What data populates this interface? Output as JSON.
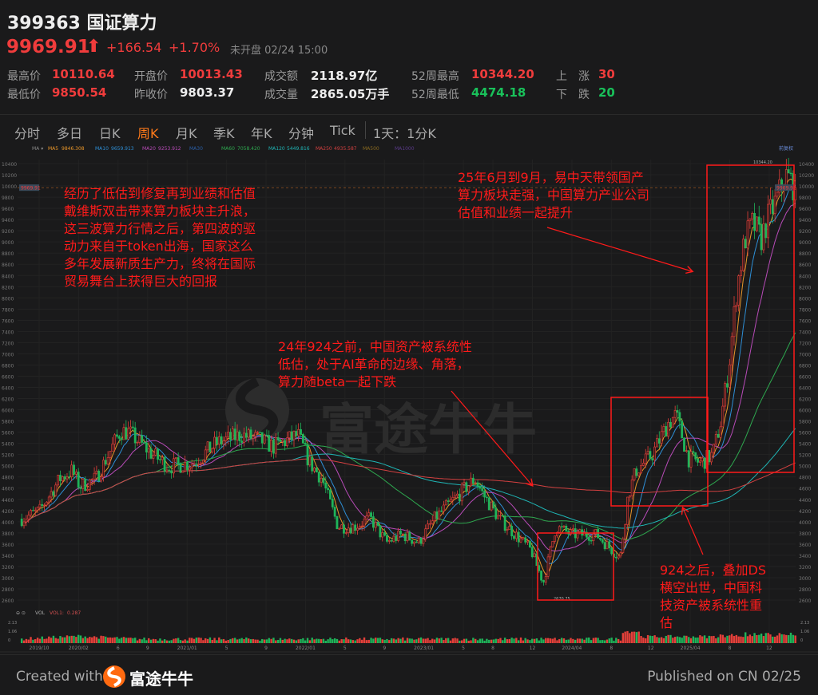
{
  "header": {
    "code_name": "399363 国证算力",
    "price": "9969.91",
    "arrow": "⬆",
    "change": "+166.54",
    "change_pct": "+1.70%",
    "status": "未开盘",
    "datetime": "02/24 15:00"
  },
  "stats": [
    {
      "label": "最高价",
      "value": "10110.64",
      "color": "red"
    },
    {
      "label": "最低价",
      "value": "9850.54",
      "color": "red"
    },
    {
      "label": "开盘价",
      "value": "10013.43",
      "color": "red"
    },
    {
      "label": "昨收价",
      "value": "9803.37",
      "color": "wht"
    },
    {
      "label": "成交额",
      "value": "2118.97亿",
      "color": "wht"
    },
    {
      "label": "成交量",
      "value": "2865.05万手",
      "color": "wht"
    },
    {
      "label": "52周最高",
      "value": "10344.20",
      "color": "red"
    },
    {
      "label": "52周最低",
      "value": "4474.18",
      "color": "grn"
    },
    {
      "label": "上　涨",
      "value": "30",
      "color": "red"
    },
    {
      "label": "下　跌",
      "value": "20",
      "color": "grn"
    }
  ],
  "tabs": [
    "分时",
    "多日",
    "日K",
    "周K",
    "月K",
    "季K",
    "年K",
    "分钟",
    "Tick",
    "1天：1分K"
  ],
  "active_tab": "周K",
  "ma_legend": [
    {
      "name": "MA5",
      "value": "9846.308",
      "color": "#e8962a"
    },
    {
      "name": "MA10",
      "value": "9659.913",
      "color": "#2e8fd6"
    },
    {
      "name": "MA20",
      "value": "9253.912",
      "color": "#b84bb8"
    },
    {
      "name": "MA30",
      "value": "",
      "color": "#2a5fa8"
    },
    {
      "name": "MA60",
      "value": "7058.420",
      "color": "#2ea84f"
    },
    {
      "name": "MA120",
      "value": "5449.816",
      "color": "#1fb5b5"
    },
    {
      "name": "MA250",
      "value": "4935.587",
      "color": "#d24040"
    },
    {
      "name": "MA500",
      "value": "",
      "color": "#8a6a20"
    },
    {
      "name": "MA1000",
      "value": "",
      "color": "#5a3a8a"
    }
  ],
  "adjust_label": "前复权",
  "current_price_tag": "9969.91",
  "high_marker": "10344.20",
  "low_marker": "2670.75",
  "vol_legend": {
    "name": "VOL",
    "ma": "VOL1:",
    "value": "0.287"
  },
  "vol_ticks": [
    "2.13",
    "1.06",
    "0"
  ],
  "chart_data": {
    "type": "candlestick",
    "period": "weekly",
    "y_ticks": [
      10400,
      10200,
      10000,
      9800,
      9600,
      9400,
      9200,
      9000,
      8800,
      8600,
      8400,
      8200,
      8000,
      7800,
      7600,
      7400,
      7200,
      7000,
      6800,
      6600,
      6400,
      6200,
      6000,
      5800,
      5600,
      5400,
      5200,
      5000,
      4800,
      4600,
      4400,
      4200,
      4000,
      3800,
      3600,
      3400,
      3200,
      3000,
      2800,
      2600
    ],
    "ylim": [
      2600,
      10400
    ],
    "x_tick_labels": [
      [
        "2019/10",
        "2019-10-01"
      ],
      [
        "2020/02",
        "2020-02-01"
      ],
      [
        "6",
        "2020-06-01"
      ],
      [
        "9",
        "2020-09-01"
      ],
      [
        "2021/01",
        "2021-01-01"
      ],
      [
        "5",
        "2021-05-01"
      ],
      [
        "9",
        "2021-09-01"
      ],
      [
        "2022/01",
        "2022-01-01"
      ],
      [
        "5",
        "2022-05-01"
      ],
      [
        "9",
        "2022-09-01"
      ],
      [
        "2023/01",
        "2023-01-01"
      ],
      [
        "5",
        "2023-05-01"
      ],
      [
        "8",
        "2023-08-01"
      ],
      [
        "12",
        "2023-12-01"
      ],
      [
        "2024/04",
        "2024-04-01"
      ],
      [
        "8",
        "2024-08-01"
      ],
      [
        "12",
        "2024-12-01"
      ],
      [
        "2025/04",
        "2025-04-01"
      ],
      [
        "8",
        "2025-08-01"
      ],
      [
        "12",
        "2025-12-01"
      ]
    ],
    "close_approx": [
      [
        "2019-08-08",
        4050
      ],
      [
        "2019-10-03",
        4200
      ],
      [
        "2019-12-04",
        4770
      ],
      [
        "2020-01-11",
        4910
      ],
      [
        "2020-02-05",
        4630
      ],
      [
        "2020-03-24",
        4770
      ],
      [
        "2020-06-08",
        5620
      ],
      [
        "2020-07-03",
        5600
      ],
      [
        "2020-09-16",
        5200
      ],
      [
        "2020-11-05",
        4990
      ],
      [
        "2021-01-19",
        5050
      ],
      [
        "2021-04-02",
        5410
      ],
      [
        "2021-06-15",
        5550
      ],
      [
        "2021-08-05",
        5480
      ],
      [
        "2021-09-24",
        5340
      ],
      [
        "2021-12-08",
        5550
      ],
      [
        "2022-01-14",
        5050
      ],
      [
        "2022-02-21",
        4770
      ],
      [
        "2022-04-10",
        3910
      ],
      [
        "2022-05-28",
        3910
      ],
      [
        "2022-07-18",
        4060
      ],
      [
        "2022-09-07",
        3630
      ],
      [
        "2022-10-25",
        3770
      ],
      [
        "2022-12-15",
        3630
      ],
      [
        "2023-02-04",
        4060
      ],
      [
        "2023-03-22",
        4340
      ],
      [
        "2023-05-12",
        4630
      ],
      [
        "2023-06-06",
        4770
      ],
      [
        "2023-07-01",
        4490
      ],
      [
        "2023-08-19",
        4060
      ],
      [
        "2023-10-09",
        3770
      ],
      [
        "2023-11-27",
        3490
      ],
      [
        "2024-01-04",
        2910
      ],
      [
        "2024-02-12",
        3910
      ],
      [
        "2024-04-01",
        3770
      ],
      [
        "2024-06-15",
        3770
      ],
      [
        "2024-08-04",
        3490
      ],
      [
        "2024-08-28",
        3340
      ],
      [
        "2024-09-22",
        4490
      ],
      [
        "2024-10-16",
        4910
      ],
      [
        "2024-12-05",
        5200
      ],
      [
        "2025-01-24",
        5770
      ],
      [
        "2025-02-18",
        5910
      ],
      [
        "2025-03-25",
        5130
      ],
      [
        "2025-05-03",
        5050
      ],
      [
        "2025-06-09",
        5200
      ],
      [
        "2025-07-03",
        5770
      ],
      [
        "2025-07-28",
        6760
      ],
      [
        "2025-08-23",
        8190
      ],
      [
        "2025-09-17",
        9050
      ],
      [
        "2025-10-12",
        9330
      ],
      [
        "2025-11-06",
        9050
      ],
      [
        "2025-12-01",
        9480
      ],
      [
        "2025-12-25",
        9760
      ],
      [
        "2026-01-20",
        10190
      ],
      [
        "2026-02-24",
        9969.91
      ]
    ]
  },
  "annotations": [
    {
      "lines": [
        "经历了低估到修复再到业绩和估值",
        "戴维斯双击带来算力板块主升浪，",
        "这三波算力行情之后，第四波的驱",
        "动力来自于token出海，国家这么",
        "多年发展新质生产力，终将在国际",
        "贸易舞台上获得巨大的回报"
      ]
    },
    {
      "lines": [
        "25年6月到9月，易中天带领国产",
        "算力板块走强，中国算力产业公司",
        "估值和业绩一起提升"
      ]
    },
    {
      "lines": [
        "24年924之前，中国资产被系统性",
        "低估，处于AI革命的边缘、角落，",
        "算力随beta一起下跌"
      ]
    },
    {
      "lines": [
        "924之后，叠加DS",
        "横空出世，中国科",
        "技资产被系统性重",
        "估"
      ]
    }
  ],
  "watermark": "富途牛牛",
  "footer": {
    "created": "Created with",
    "brand": "富途牛牛",
    "published": "Published on CN 02/25"
  },
  "colors": {
    "up": "#e5403a",
    "down": "#1fb55a",
    "annotation": "#ff1a1a",
    "active_tab": "#ff7a1a"
  }
}
